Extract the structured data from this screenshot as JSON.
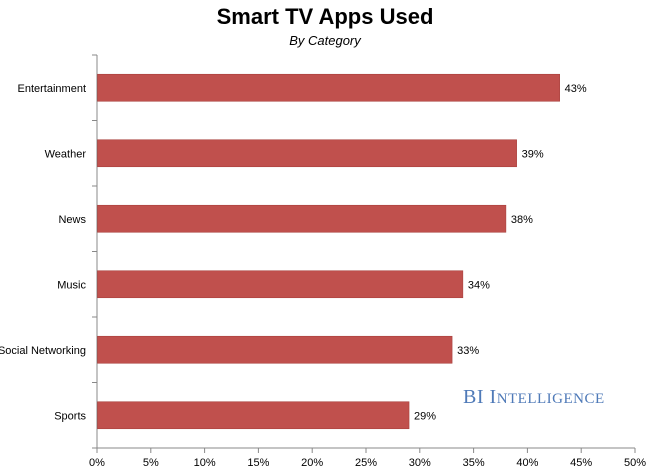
{
  "chart_data": {
    "type": "bar",
    "orientation": "horizontal",
    "title": "Smart TV Apps Used",
    "subtitle": "By Category",
    "categories": [
      "Entertainment",
      "Weather",
      "News",
      "Music",
      "Social Networking",
      "Sports"
    ],
    "values": [
      43,
      39,
      38,
      34,
      33,
      29
    ],
    "value_labels": [
      "43%",
      "39%",
      "38%",
      "34%",
      "33%",
      "29%"
    ],
    "xlim": [
      0,
      50
    ],
    "x_ticks": [
      0,
      5,
      10,
      15,
      20,
      25,
      30,
      35,
      40,
      45,
      50
    ],
    "x_tick_labels": [
      "0%",
      "5%",
      "10%",
      "15%",
      "20%",
      "25%",
      "30%",
      "35%",
      "40%",
      "45%",
      "50%"
    ],
    "bar_color": "#c0504d",
    "grid": false,
    "legend": "none"
  },
  "watermark": {
    "parts": [
      {
        "text": "B",
        "size": "lead"
      },
      {
        "text": "I ",
        "size": "lead"
      },
      {
        "text": "I",
        "size": "lead"
      },
      {
        "text": "NTELLIGENCE",
        "size": "small"
      }
    ],
    "color": "#4f7ab8"
  }
}
